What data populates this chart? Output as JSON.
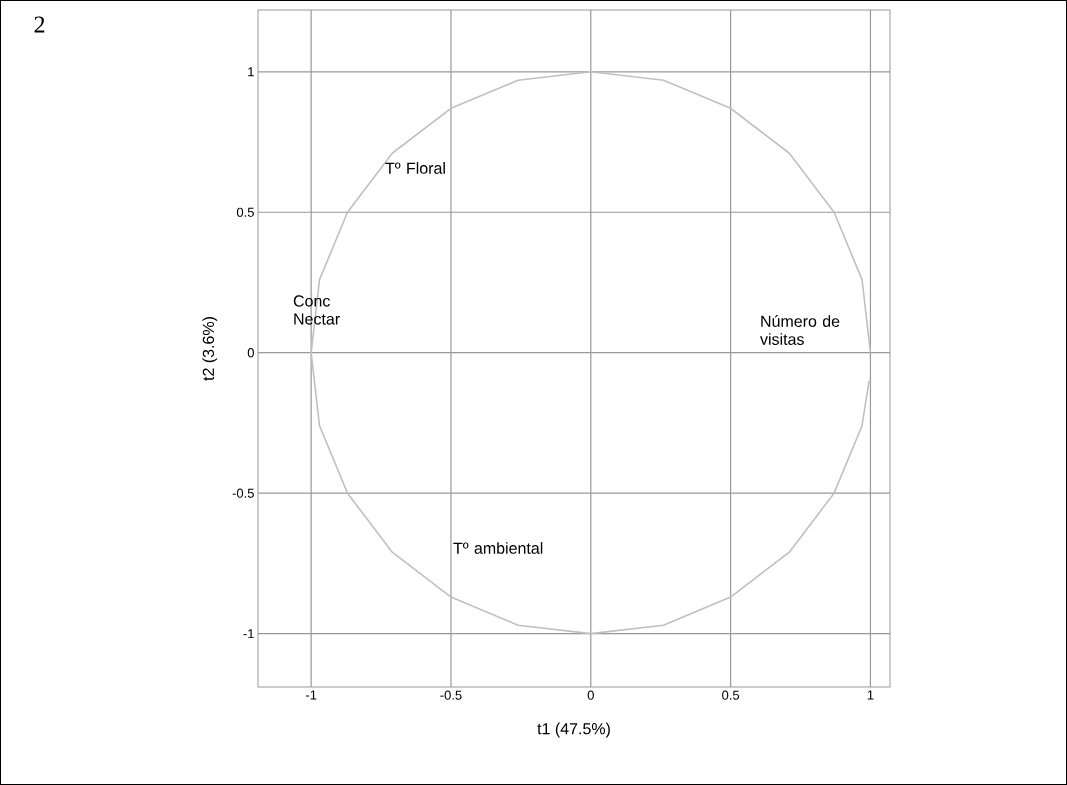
{
  "chart_data": {
    "type": "line",
    "xlabel": "t1 (47.5%)",
    "ylabel": "t2 (3.6%)",
    "xlim": [
      -1.19,
      1.07
    ],
    "ylim": [
      -1.19,
      1.22
    ],
    "xticks": [
      -1,
      -0.5,
      0,
      0.5,
      1
    ],
    "yticks": [
      -1,
      -0.5,
      0,
      0.5,
      1
    ],
    "grid": true,
    "marker": "none",
    "series": [
      {
        "color": "#c0c0c0",
        "x": [
          1,
          0.97,
          0.87,
          0.71,
          0.5,
          0.26,
          0,
          -0.26,
          -0.5,
          -0.71,
          -0.87,
          -0.97,
          -1,
          -0.97,
          -0.87,
          -0.71,
          -0.5,
          -0.26,
          0,
          0.26,
          0.5,
          0.71,
          0.87,
          0.97,
          0.995
        ],
        "values": [
          0,
          0.26,
          0.5,
          0.71,
          0.87,
          0.97,
          1,
          0.97,
          0.87,
          0.71,
          0.5,
          0.26,
          0,
          -0.26,
          -0.5,
          -0.71,
          -0.87,
          -0.97,
          -1,
          -0.97,
          -0.87,
          -0.71,
          -0.5,
          -0.26,
          -0.1
        ]
      }
    ],
    "annotations": [
      "2",
      "Tº Floral",
      "Conc Nectar",
      "Número de visitas",
      "Tº ambiental"
    ]
  }
}
